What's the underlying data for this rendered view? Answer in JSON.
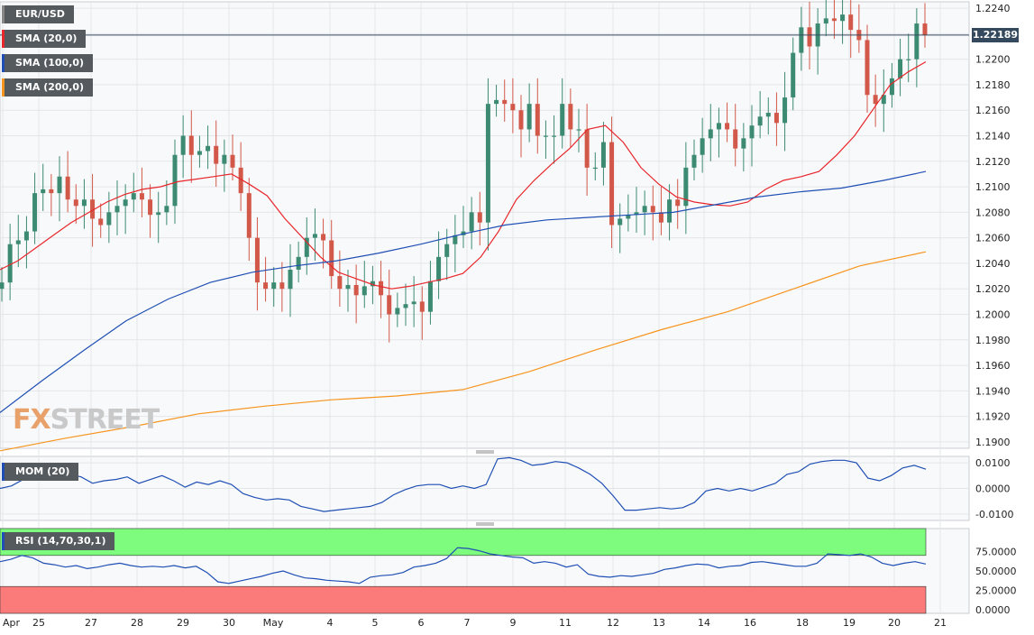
{
  "symbol": "EUR/USD",
  "last_price": "1.22189",
  "indicators": {
    "sma20": {
      "label": "SMA (20,0)",
      "color": "#e8262b"
    },
    "sma100": {
      "label": "SMA (100,0)",
      "color": "#1f4fb4"
    },
    "sma200": {
      "label": "SMA (200,0)",
      "color": "#f7941d"
    },
    "mom": {
      "label": "MOM (20)",
      "color": "#1f4fb4"
    },
    "rsi": {
      "label": "RSI (14,70,30,1)",
      "color": "#1f4fb4"
    }
  },
  "logo": {
    "text": "FXSTREET"
  },
  "colors": {
    "up": "#3c8a72",
    "down": "#d2584a",
    "rsi_over": "#7dfc7d",
    "rsi_under": "#fb7b7b"
  },
  "chart_data": {
    "type": "candlestick",
    "x_tick_labels": [
      "Apr",
      "25",
      "27",
      "28",
      "29",
      "30",
      "May",
      "4",
      "5",
      "6",
      "7",
      "9",
      "11",
      "12",
      "13",
      "14",
      "16",
      "18",
      "19",
      "20",
      "21"
    ],
    "price_axis": {
      "ticks": [
        "1.2240",
        "1.2220",
        "1.2200",
        "1.2180",
        "1.2160",
        "1.2140",
        "1.2120",
        "1.2100",
        "1.2080",
        "1.2060",
        "1.2040",
        "1.2020",
        "1.2000",
        "1.1980",
        "1.1960",
        "1.1940",
        "1.1920",
        "1.1900"
      ],
      "ylim": [
        1.1895,
        1.2245
      ]
    },
    "mom_axis": {
      "ticks": [
        "0.0100",
        "0.0000",
        "-0.0100"
      ],
      "ylim": [
        -0.0125,
        0.0125
      ]
    },
    "rsi_axis": {
      "ticks": [
        "75.0000",
        "50.0000",
        "25.0000",
        "0.0000"
      ],
      "ylim": [
        0,
        100
      ]
    },
    "candles_close": [
      1.2025,
      1.2055,
      1.2058,
      1.2065,
      1.2095,
      1.2098,
      1.2095,
      1.2108,
      1.209,
      1.2085,
      1.209,
      1.2075,
      1.207,
      1.208,
      1.2085,
      1.209,
      1.2095,
      1.209,
      1.2078,
      1.208,
      1.2085,
      1.2125,
      1.214,
      1.2125,
      1.2128,
      1.2132,
      1.2118,
      1.2125,
      1.2115,
      1.2095,
      1.206,
      1.2025,
      1.202,
      1.2025,
      1.202,
      1.2035,
      1.2045,
      1.206,
      1.2063,
      1.2058,
      1.203,
      1.202,
      1.2023,
      1.2015,
      1.2022,
      1.2026,
      1.2015,
      1.2,
      1.2005,
      1.2008,
      1.201,
      1.2002,
      1.2026,
      1.2045,
      1.2055,
      1.2062,
      1.2065,
      1.208,
      1.2072,
      1.2165,
      1.2168,
      1.2165,
      1.216,
      1.2145,
      1.2165,
      1.214,
      1.214,
      1.214,
      1.2165,
      1.2145,
      1.2145,
      1.2115,
      1.2115,
      1.2135,
      1.207,
      1.2075,
      1.2078,
      1.208,
      1.2085,
      1.208,
      1.2072,
      1.209,
      1.2085,
      1.2115,
      1.2125,
      1.2138,
      1.2145,
      1.215,
      1.2145,
      1.213,
      1.2138,
      1.2148,
      1.2155,
      1.2158,
      1.215,
      1.217,
      1.2205,
      1.2225,
      1.221,
      1.2228,
      1.2232,
      1.223,
      1.2235,
      1.2223,
      1.2215,
      1.2172,
      1.2165,
      1.2172,
      1.2185,
      1.22,
      1.22,
      1.2228,
      1.2219
    ],
    "candles_open": [
      1.202,
      1.2025,
      1.2055,
      1.2058,
      1.2065,
      1.2095,
      1.2098,
      1.2095,
      1.2108,
      1.209,
      1.2085,
      1.209,
      1.2075,
      1.207,
      1.208,
      1.2085,
      1.209,
      1.2095,
      1.209,
      1.2078,
      1.208,
      1.2085,
      1.2125,
      1.214,
      1.2125,
      1.2128,
      1.2132,
      1.2118,
      1.2125,
      1.2115,
      1.2095,
      1.206,
      1.2025,
      1.202,
      1.2025,
      1.202,
      1.2035,
      1.2045,
      1.206,
      1.2063,
      1.2058,
      1.203,
      1.202,
      1.2023,
      1.2015,
      1.2022,
      1.2026,
      1.2015,
      1.2,
      1.2005,
      1.2008,
      1.201,
      1.2002,
      1.2026,
      1.2045,
      1.2055,
      1.2062,
      1.2065,
      1.208,
      1.2072,
      1.2165,
      1.2168,
      1.2165,
      1.216,
      1.2145,
      1.2165,
      1.214,
      1.214,
      1.214,
      1.2165,
      1.2145,
      1.2145,
      1.2115,
      1.2115,
      1.2135,
      1.207,
      1.2075,
      1.2078,
      1.208,
      1.2085,
      1.208,
      1.2072,
      1.209,
      1.2085,
      1.2115,
      1.2125,
      1.2138,
      1.2145,
      1.215,
      1.2145,
      1.213,
      1.2138,
      1.2148,
      1.2155,
      1.2158,
      1.215,
      1.217,
      1.2205,
      1.2225,
      1.221,
      1.2228,
      1.2232,
      1.223,
      1.2235,
      1.2223,
      1.2215,
      1.2172,
      1.2165,
      1.2172,
      1.2185,
      1.22,
      1.22,
      1.2228
    ],
    "sma20_values": [
      1.2035,
      1.2042,
      1.2052,
      1.2062,
      1.2072,
      1.208,
      1.2088,
      1.2094,
      1.2098,
      1.21,
      1.2104,
      1.2106,
      1.2108,
      1.211,
      1.2102,
      1.2093,
      1.2075,
      1.206,
      1.2045,
      1.2033,
      1.2028,
      1.2023,
      1.202,
      1.2022,
      1.2025,
      1.2028,
      1.2032,
      1.2045,
      1.2065,
      1.209,
      1.2105,
      1.2118,
      1.213,
      1.2145,
      1.2148,
      1.2135,
      1.2115,
      1.2102,
      1.2092,
      1.2088,
      1.2086,
      1.2085,
      1.2088,
      1.2098,
      1.2105,
      1.2108,
      1.2112,
      1.2125,
      1.214,
      1.216,
      1.218,
      1.219,
      1.2198
    ],
    "sma100_values": [
      1.1923,
      1.1948,
      1.1972,
      1.1995,
      1.2012,
      1.2025,
      1.2033,
      1.2038,
      1.2042,
      1.2048,
      1.2055,
      1.2063,
      1.207,
      1.2074,
      1.2076,
      1.2078,
      1.208,
      1.2086,
      1.2092,
      1.2096,
      1.2099,
      1.2105,
      1.2112
    ],
    "sma200_values": [
      1.1893,
      1.1903,
      1.1912,
      1.1922,
      1.1928,
      1.1933,
      1.1936,
      1.1941,
      1.1955,
      1.1972,
      1.1988,
      1.2002,
      1.202,
      1.2038,
      1.2049
    ],
    "mom_values": [
      0.0,
      0.001,
      0.0035,
      0.005,
      0.0065,
      0.0055,
      0.0055,
      0.0045,
      0.002,
      0.003,
      0.0035,
      0.0045,
      0.002,
      0.0035,
      0.005,
      0.003,
      0.0005,
      0.0025,
      0.0015,
      0.003,
      0.0015,
      -0.002,
      -0.0035,
      -0.0045,
      -0.004,
      -0.0045,
      -0.007,
      -0.008,
      -0.009,
      -0.0085,
      -0.008,
      -0.0075,
      -0.007,
      -0.0055,
      -0.0025,
      -0.0005,
      0.001,
      0.0015,
      0.0015,
      0.0,
      0.001,
      0.0,
      0.0015,
      0.0115,
      0.012,
      0.011,
      0.009,
      0.0095,
      0.0105,
      0.01,
      0.008,
      0.0055,
      0.002,
      -0.003,
      -0.0085,
      -0.0085,
      -0.008,
      -0.0075,
      -0.008,
      -0.0075,
      -0.0055,
      -0.001,
      0.0,
      -0.001,
      0.0,
      -0.001,
      0.0005,
      0.002,
      0.0055,
      0.0065,
      0.0095,
      0.0105,
      0.011,
      0.011,
      0.01,
      0.004,
      0.003,
      0.005,
      0.008,
      0.009,
      0.0075
    ],
    "rsi_values": [
      62,
      65,
      70,
      67,
      60,
      58,
      55,
      57,
      53,
      55,
      58,
      60,
      57,
      55,
      56,
      55,
      57,
      54,
      56,
      48,
      36,
      34,
      37,
      40,
      43,
      47,
      50,
      45,
      41,
      40,
      38,
      37,
      36,
      34,
      42,
      44,
      45,
      48,
      55,
      57,
      60,
      66,
      80,
      79,
      76,
      72,
      70,
      68,
      67,
      60,
      62,
      60,
      55,
      58,
      46,
      43,
      42,
      44,
      43,
      45,
      47,
      52,
      54,
      57,
      59,
      58,
      54,
      56,
      57,
      61,
      62,
      60,
      58,
      56,
      56,
      60,
      72,
      71,
      70,
      72,
      68,
      60,
      57,
      60,
      62,
      59
    ]
  }
}
